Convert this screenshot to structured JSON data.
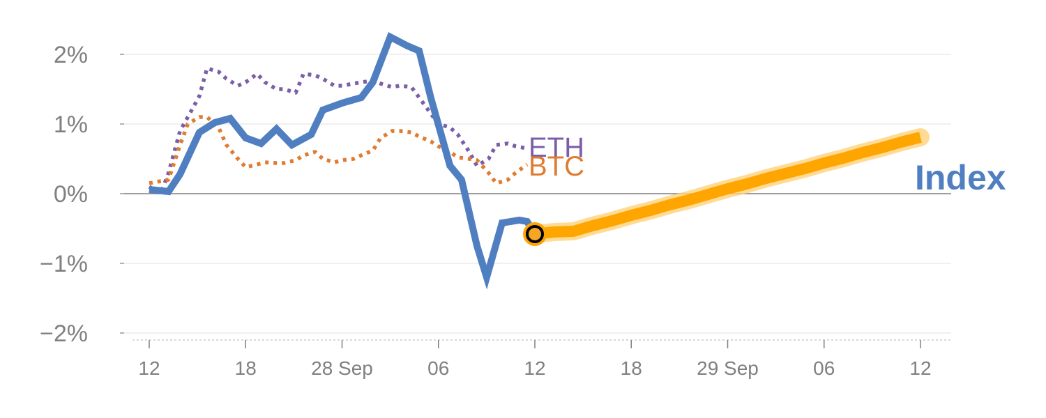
{
  "chart_data": {
    "type": "line",
    "title": "",
    "xlabel": "",
    "ylabel": "",
    "ylim": [
      -2.0,
      2.0
    ],
    "y_ticks": [
      {
        "value": 2,
        "label": "2%"
      },
      {
        "value": 1,
        "label": "1%"
      },
      {
        "value": 0,
        "label": "0%"
      },
      {
        "value": -1,
        "label": "−1%"
      },
      {
        "value": -2,
        "label": "−2%"
      }
    ],
    "x_range_days": [
      -0.2,
      41.5
    ],
    "x_ticks": [
      {
        "day": 0,
        "label": "12"
      },
      {
        "day": 5,
        "label": "18"
      },
      {
        "day": 10,
        "label": "28 Sep"
      },
      {
        "day": 15,
        "label": "06"
      },
      {
        "day": 20,
        "label": "12"
      },
      {
        "day": 25,
        "label": "18"
      },
      {
        "day": 30,
        "label": "29 Sep"
      },
      {
        "day": 35,
        "label": "06"
      },
      {
        "day": 40,
        "label": "12"
      }
    ],
    "grid": true,
    "series": [
      {
        "name": "ETH",
        "style": "dotted",
        "color": "#7b5ea7",
        "x": [
          0,
          0.6,
          1,
          1.6,
          2,
          2.6,
          3,
          3.6,
          4,
          4.6,
          5,
          5.6,
          6,
          6.6,
          7,
          7.6,
          8,
          8.6,
          9,
          9.6,
          10,
          10.6,
          11,
          11.6,
          12,
          12.6,
          13,
          13.6,
          14,
          14.6,
          15,
          15.6,
          16,
          16.6,
          17,
          17.6,
          18,
          18.6,
          19,
          19.6
        ],
        "values": [
          0.1,
          0.0,
          0.3,
          0.9,
          1.1,
          1.4,
          1.8,
          1.75,
          1.65,
          1.55,
          1.6,
          1.72,
          1.6,
          1.5,
          1.5,
          1.45,
          1.72,
          1.7,
          1.65,
          1.55,
          1.55,
          1.58,
          1.6,
          1.62,
          1.58,
          1.53,
          1.55,
          1.53,
          1.38,
          1.15,
          1.0,
          0.95,
          0.85,
          0.6,
          0.4,
          0.5,
          0.7,
          0.72,
          0.68,
          0.65
        ]
      },
      {
        "name": "BTC",
        "style": "dotted",
        "color": "#e07b2f",
        "x": [
          0,
          0.6,
          1,
          1.6,
          2,
          2.6,
          3,
          3.6,
          4,
          4.6,
          5,
          5.6,
          6,
          6.6,
          7,
          7.6,
          8,
          8.6,
          9,
          9.6,
          10,
          10.6,
          11,
          11.6,
          12,
          12.6,
          13,
          13.6,
          14,
          14.6,
          15,
          15.6,
          16,
          16.6,
          17,
          17.6,
          18,
          18.6,
          19,
          19.6
        ],
        "values": [
          0.15,
          0.18,
          0.2,
          0.7,
          1.0,
          1.1,
          1.1,
          0.95,
          0.7,
          0.5,
          0.38,
          0.42,
          0.45,
          0.44,
          0.44,
          0.48,
          0.55,
          0.6,
          0.5,
          0.45,
          0.48,
          0.5,
          0.55,
          0.62,
          0.8,
          0.9,
          0.9,
          0.88,
          0.82,
          0.75,
          0.68,
          0.6,
          0.52,
          0.5,
          0.48,
          0.3,
          0.15,
          0.2,
          0.3,
          0.42
        ]
      },
      {
        "name": "Index",
        "style": "solid",
        "color": "#4f7fc1",
        "x": [
          0,
          1,
          1.6,
          2.6,
          3.4,
          4.2,
          5,
          5.8,
          6.6,
          7.4,
          8.4,
          9,
          10,
          11,
          11.6,
          12.5,
          13.4,
          14,
          14.6,
          15.6,
          16.2,
          17,
          17.5,
          18.3,
          19.2,
          19.6,
          20
        ],
        "values": [
          0.06,
          0.03,
          0.28,
          0.88,
          1.02,
          1.08,
          0.8,
          0.72,
          0.93,
          0.7,
          0.85,
          1.2,
          1.3,
          1.38,
          1.6,
          2.25,
          2.12,
          2.05,
          1.38,
          0.4,
          0.2,
          -0.75,
          -1.2,
          -0.42,
          -0.38,
          -0.4,
          -0.58
        ]
      },
      {
        "name": "forecast",
        "style": "thick",
        "color": "#ffa500",
        "x": [
          20,
          21,
          22,
          23,
          24,
          25,
          26,
          27,
          28,
          29,
          30,
          31,
          32,
          33,
          34,
          35,
          36,
          37,
          38,
          39,
          40
        ],
        "values": [
          -0.58,
          -0.55,
          -0.54,
          -0.46,
          -0.39,
          -0.31,
          -0.24,
          -0.16,
          -0.09,
          -0.01,
          0.07,
          0.14,
          0.22,
          0.29,
          0.36,
          0.44,
          0.51,
          0.59,
          0.66,
          0.74,
          0.81
        ]
      }
    ],
    "labels": {
      "eth": "ETH",
      "btc": "BTC",
      "index": "Index"
    },
    "marker": {
      "day": 20,
      "value": -0.58
    },
    "colors": {
      "eth": "#7b5ea7",
      "btc": "#e07b2f",
      "index": "#4f7fc1",
      "forecast": "#ffa500",
      "forecast_halo": "#ffd27a",
      "grid": "#e6e6e6",
      "zero": "#7f7f7f",
      "axis": "#cccccc",
      "tick_text": "#808080"
    }
  }
}
